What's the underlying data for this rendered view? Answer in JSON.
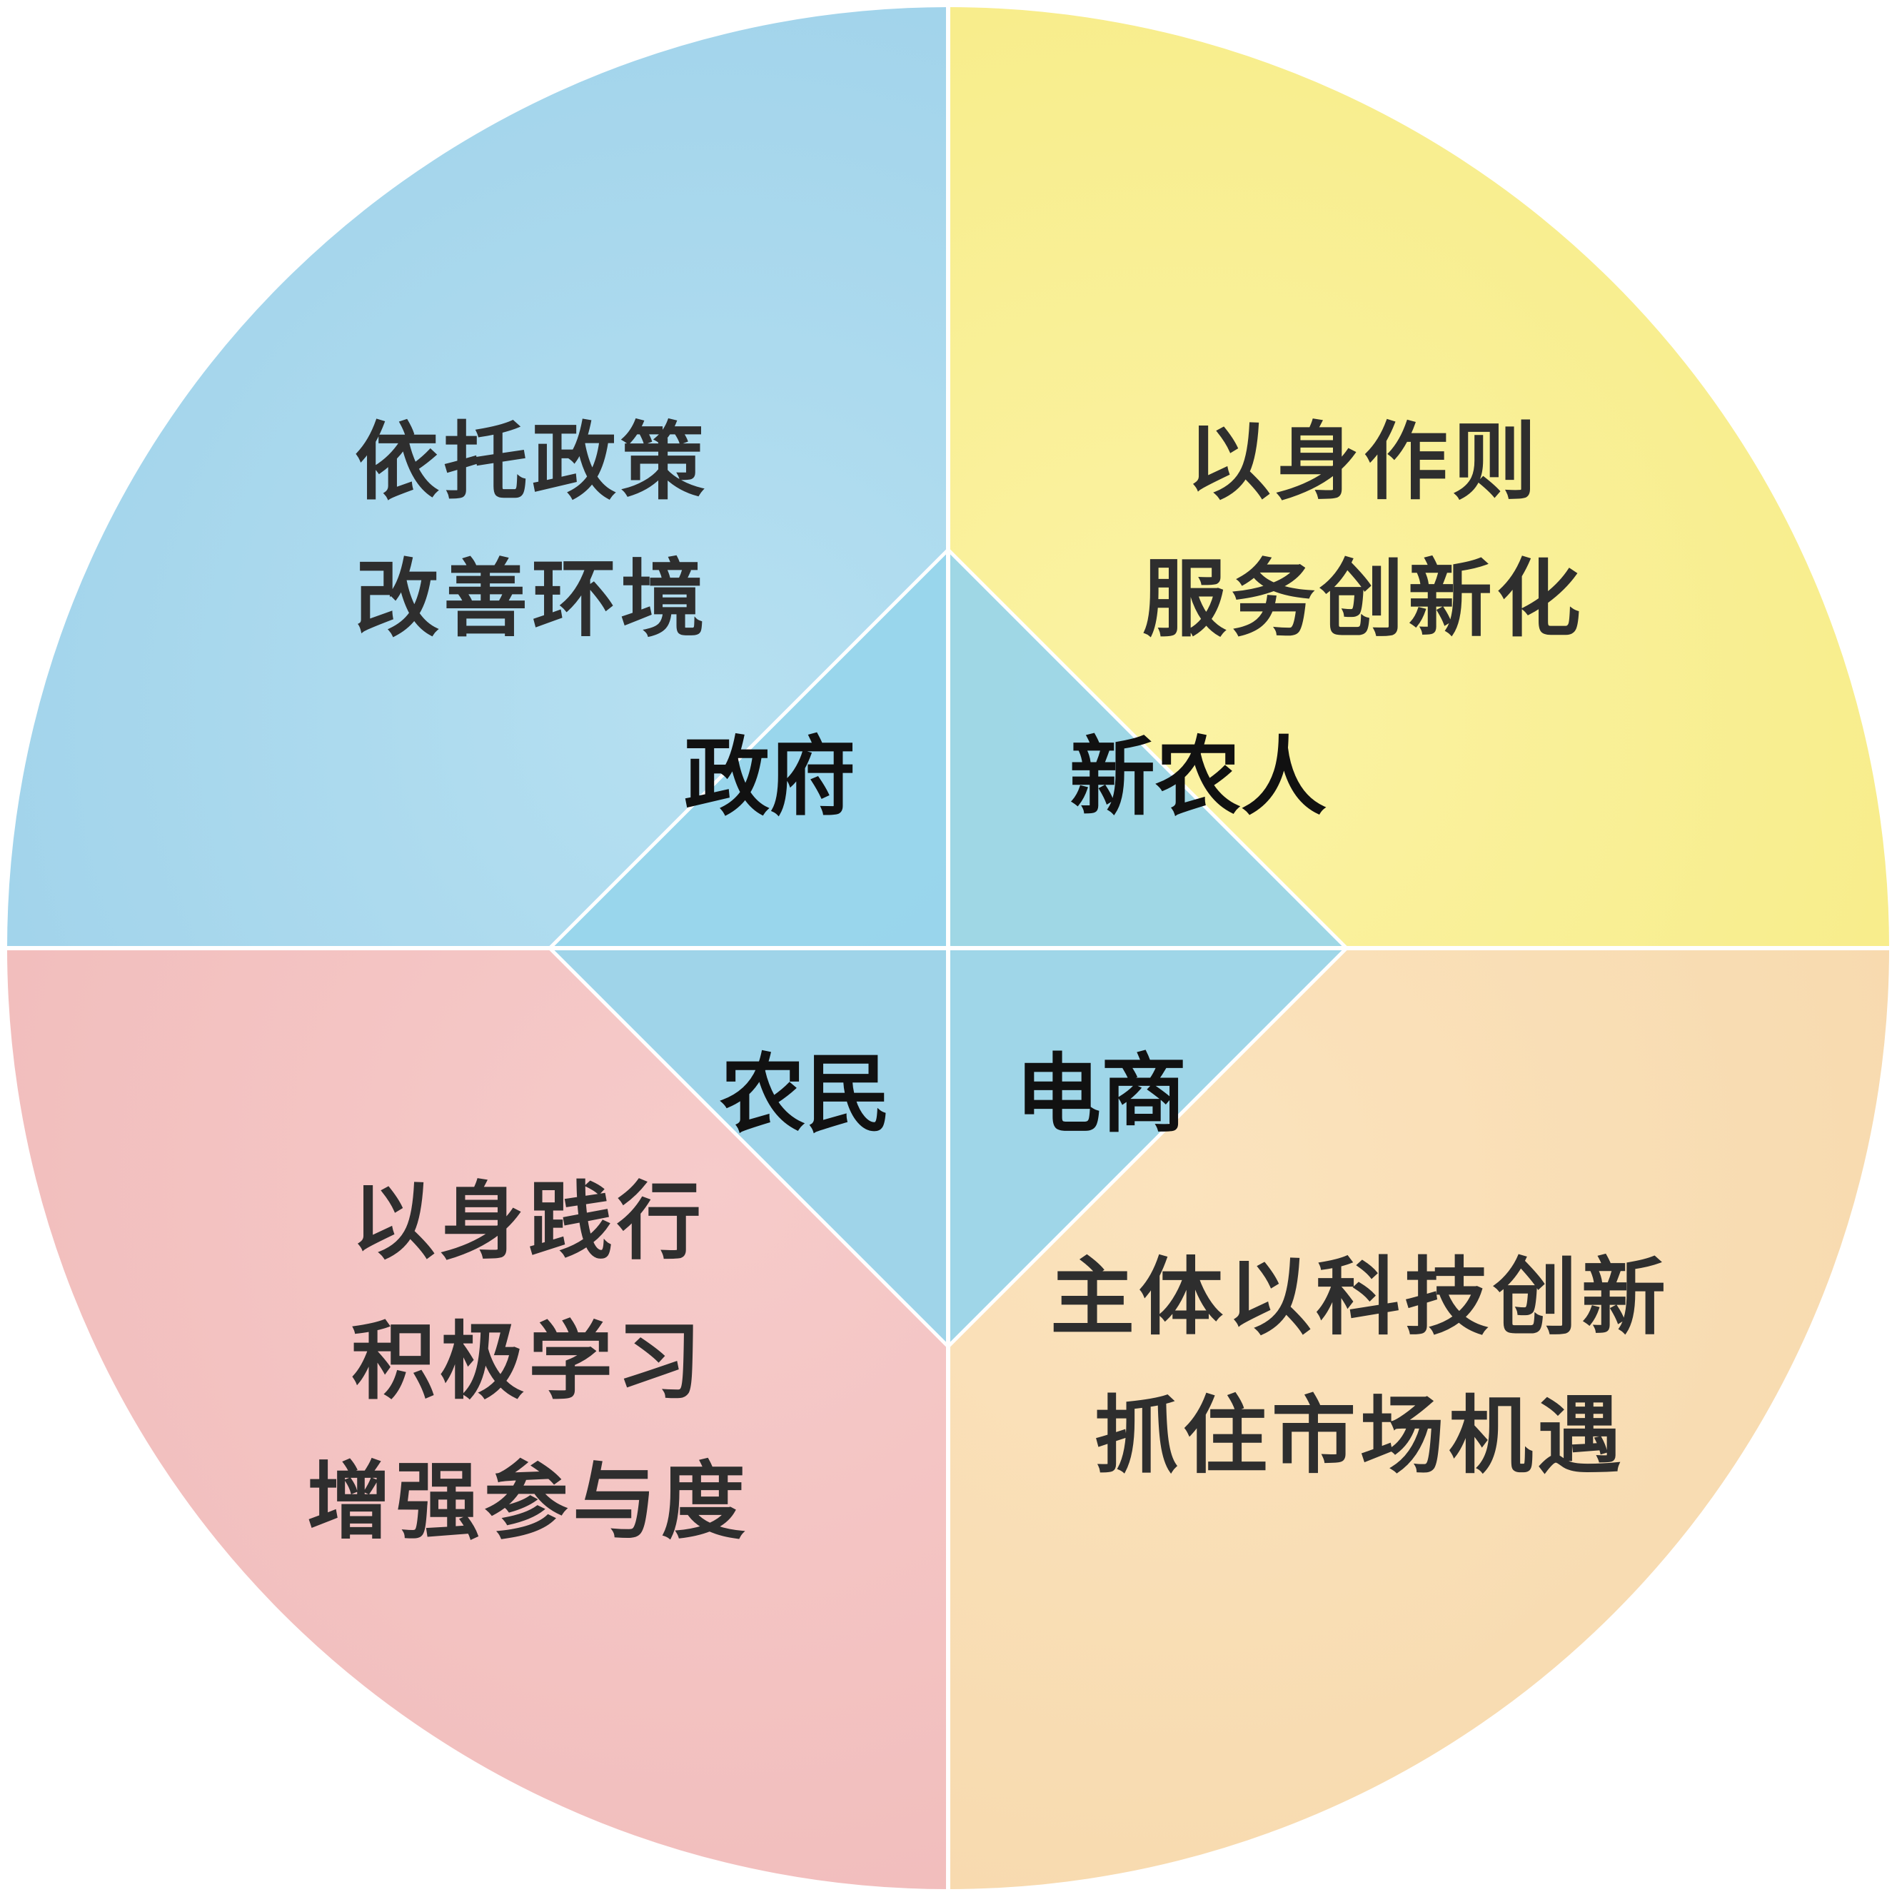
{
  "colors": {
    "blue": "#a9d8ec",
    "yellow": "#f8ee8f",
    "orange": "#f9dcb1",
    "pink": "#f3c1c0",
    "center": "#93d3ea",
    "divider": "#ffffff"
  },
  "quadrants": {
    "top_left": {
      "lines": [
        "依托政策",
        "改善环境"
      ]
    },
    "top_right": {
      "lines": [
        "以身作则",
        "服务创新化"
      ]
    },
    "bottom_left": {
      "lines": [
        "以身践行",
        "积极学习",
        "增强参与度"
      ]
    },
    "bottom_right": {
      "lines": [
        "主体以科技创新",
        "抓住市场机遇"
      ]
    }
  },
  "center": {
    "top_left_label": "政府",
    "top_right_label": "新农人",
    "bottom_left_label": "农民",
    "bottom_right_label": "电商"
  }
}
